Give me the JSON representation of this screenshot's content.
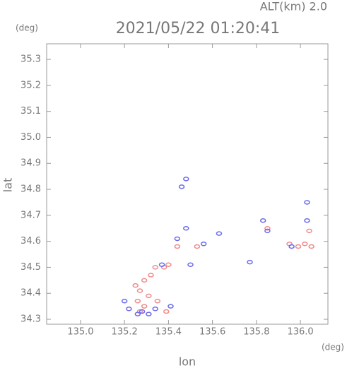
{
  "chart_data": {
    "type": "scatter",
    "title": "2021/05/22 01:20:41",
    "subtitle": "ALT(km) 2.0",
    "y_label": "lat",
    "y_unit": "(deg)",
    "x_label": "lon",
    "x_unit": "(deg)",
    "xlim": [
      134.846,
      136.125
    ],
    "ylim": [
      34.281,
      35.36
    ],
    "xticks": [
      {
        "value": 135.0,
        "label": "135.0"
      },
      135.2,
      135.4,
      135.6,
      135.8,
      {
        "value": 136.0,
        "label": "136.0"
      }
    ],
    "yticks": [
      34.3,
      34.4,
      34.5,
      34.6,
      34.7,
      34.8,
      34.9,
      {
        "value": 35.0,
        "label": "35.0"
      },
      35.1,
      35.2,
      35.3
    ],
    "series": [
      {
        "color": "#f08a8a",
        "x": [
          135.25,
          135.27,
          135.29,
          135.32,
          135.34,
          135.26,
          135.29,
          135.31,
          135.35,
          135.38,
          135.4,
          135.44,
          135.53,
          135.85,
          135.95,
          135.99,
          136.02,
          136.05,
          136.04,
          135.27,
          135.39
        ],
        "values": [
          34.43,
          34.41,
          34.45,
          34.47,
          34.5,
          34.37,
          34.35,
          34.39,
          34.37,
          34.5,
          34.51,
          34.58,
          34.58,
          34.65,
          34.59,
          34.58,
          34.59,
          34.58,
          34.64,
          34.33,
          34.33
        ]
      },
      {
        "color": "#6a6af0",
        "x": [
          135.2,
          135.22,
          135.28,
          135.31,
          135.26,
          135.34,
          135.41,
          135.37,
          135.44,
          135.48,
          135.46,
          135.48,
          135.56,
          135.63,
          135.77,
          135.83,
          135.85,
          135.96,
          136.03,
          136.03,
          135.5
        ],
        "values": [
          34.37,
          34.34,
          34.33,
          34.32,
          34.32,
          34.34,
          34.35,
          34.51,
          34.61,
          34.65,
          34.81,
          34.84,
          34.59,
          34.63,
          34.52,
          34.68,
          34.64,
          34.58,
          34.68,
          34.75,
          34.51
        ]
      }
    ]
  }
}
